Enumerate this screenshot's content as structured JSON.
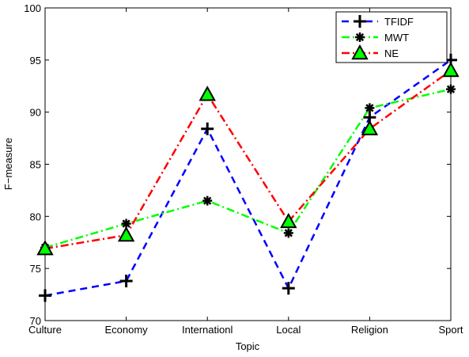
{
  "chart_data": {
    "type": "line",
    "categories": [
      "Culture",
      "Economy",
      "Internationl",
      "Local",
      "Religion",
      "Sport"
    ],
    "xlabel": "Topic",
    "ylabel": "F−measure",
    "ylim": [
      70,
      100
    ],
    "yticks": [
      70,
      75,
      80,
      85,
      90,
      95,
      100
    ],
    "grid": false,
    "legend_position": "top-right",
    "series": [
      {
        "name": "TFIDF",
        "values": [
          72.4,
          73.8,
          88.4,
          73.1,
          89.5,
          95.0
        ],
        "color": "#0000ff",
        "marker": "plus",
        "dash": "dashed"
      },
      {
        "name": "MWT",
        "values": [
          77.0,
          79.3,
          81.5,
          78.4,
          90.4,
          92.2
        ],
        "color": "#00ff00",
        "marker": "asterisk",
        "dash": "dashdot"
      },
      {
        "name": "NE",
        "values": [
          76.9,
          78.2,
          91.7,
          79.5,
          88.4,
          94.0
        ],
        "color": "#ff0000",
        "marker": "triangle",
        "dash": "dashdot"
      }
    ]
  }
}
